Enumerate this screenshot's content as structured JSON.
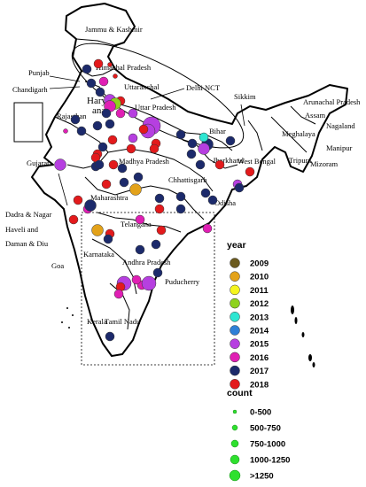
{
  "map": {
    "labels": {
      "jk": "Jammu & Kashmir",
      "hp": "Himachal Pradesh",
      "punjab": "Punjab",
      "chandigarh": "Chandigarh",
      "uttaranchal": "Uttaranchal",
      "delhi": "Delhi NCT",
      "haryana_a": "Hary",
      "haryana_b": "ana",
      "rajasthan": "Rajasthan",
      "up": "Uttar Pradesh",
      "sikkim": "Sikkim",
      "arunachal": "Arunachal Pradesh",
      "assam": "Assam",
      "nagaland": "Nagaland",
      "meghalaya": "Meghalaya",
      "manipur": "Manipur",
      "tripura": "Tripura",
      "mizoram": "Mizoram",
      "bihar": "Bihar",
      "jharkhand": "Jharkhand",
      "wb": "West Bengal",
      "gujarat": "Gujarat",
      "mp": "Madhya Pradesh",
      "chhattisgarh": "Chhattisgarh",
      "odisha": "Odisha",
      "maharashtra": "Maharashtra",
      "dnh1": "Dadra & Nagar",
      "dnh2": "Haveli and",
      "dnh3": "Daman & Diu",
      "telangana": "Telangana",
      "goa": "Goa",
      "karnataka": "Karnataka",
      "ap": "Andhra Pradesh",
      "puducherry": "Puducherry",
      "kerala": "Kerala",
      "tn": "Tamil Nadu"
    }
  },
  "legend": {
    "year_title": "year",
    "years": [
      {
        "label": "2009",
        "color": "#6b5a1e"
      },
      {
        "label": "2010",
        "color": "#e3a21a"
      },
      {
        "label": "2011",
        "color": "#f5f51e"
      },
      {
        "label": "2012",
        "color": "#8ed21e"
      },
      {
        "label": "2013",
        "color": "#2ee6d2"
      },
      {
        "label": "2014",
        "color": "#2f7fd6"
      },
      {
        "label": "2015",
        "color": "#b63fe0"
      },
      {
        "label": "2016",
        "color": "#e01fb4"
      },
      {
        "label": "2017",
        "color": "#1c2a6b"
      },
      {
        "label": "2018",
        "color": "#e31a1c"
      }
    ],
    "count_title": "count",
    "counts": [
      {
        "label": "0-500",
        "color": "#2ee02e"
      },
      {
        "label": "500-750",
        "color": "#2ee02e"
      },
      {
        "label": "750-1000",
        "color": "#2ee02e"
      },
      {
        "label": "1000-1250",
        "color": "#2ee02e"
      },
      {
        "label": ">1250",
        "color": "#2ee02e"
      }
    ]
  },
  "points": [
    {
      "year": "2017",
      "count": "500-750"
    },
    {
      "year": "2018",
      "count": "500-750"
    },
    {
      "year": "2018",
      "count": "0-500"
    },
    {
      "year": "2017",
      "count": "500-750"
    },
    {
      "year": "2016",
      "count": "500-750"
    },
    {
      "year": "2018",
      "count": "0-500"
    },
    {
      "year": "2017",
      "count": "500-750"
    },
    {
      "year": "2015",
      "count": "750-1000"
    },
    {
      "year": "2018",
      "count": "500-750"
    },
    {
      "year": "2012",
      "count": "750-1000"
    },
    {
      "year": "2016",
      "count": "750-1000"
    },
    {
      "year": "2017",
      "count": "500-750"
    },
    {
      "year": "2016",
      "count": "500-750"
    },
    {
      "year": "2015",
      "count": "500-750"
    },
    {
      "year": "2015",
      "count": ">1250"
    },
    {
      "year": "2015",
      "count": "1000-1250"
    },
    {
      "year": "2017",
      "count": "500-750"
    },
    {
      "year": "2016",
      "count": "0-500"
    },
    {
      "year": "2017",
      "count": "500-750"
    },
    {
      "year": "2017",
      "count": "500-750"
    },
    {
      "year": "2017",
      "count": "500-750"
    },
    {
      "year": "2018",
      "count": "500-750"
    },
    {
      "year": "2015",
      "count": "500-750"
    },
    {
      "year": "2018",
      "count": "500-750"
    },
    {
      "year": "2018",
      "count": "500-750"
    },
    {
      "year": "2017",
      "count": "500-750"
    },
    {
      "year": "2017",
      "count": "500-750"
    },
    {
      "year": "2018",
      "count": "500-750"
    },
    {
      "year": "2017",
      "count": "500-750"
    },
    {
      "year": "2018",
      "count": "500-750"
    },
    {
      "year": "2018",
      "count": "500-750"
    },
    {
      "year": "2018",
      "count": "500-750"
    },
    {
      "year": "2015",
      "count": "750-1000"
    },
    {
      "year": "2017",
      "count": "500-750"
    },
    {
      "year": "2017",
      "count": "500-750"
    },
    {
      "year": "2017",
      "count": "500-750"
    },
    {
      "year": "2018",
      "count": "500-750"
    },
    {
      "year": "2017",
      "count": "500-750"
    },
    {
      "year": "2017",
      "count": "750-1000"
    },
    {
      "year": "2013",
      "count": "500-750"
    },
    {
      "year": "2015",
      "count": "750-1000"
    },
    {
      "year": "2017",
      "count": "500-750"
    },
    {
      "year": "2017",
      "count": "500-750"
    },
    {
      "year": "2018",
      "count": "500-750"
    },
    {
      "year": "2018",
      "count": "500-750"
    },
    {
      "year": "2015",
      "count": "500-750"
    },
    {
      "year": "2017",
      "count": "500-750"
    },
    {
      "year": "2017",
      "count": "500-750"
    },
    {
      "year": "2018",
      "count": "500-750"
    },
    {
      "year": "2017",
      "count": "500-750"
    },
    {
      "year": "2017",
      "count": "500-750"
    },
    {
      "year": "2018",
      "count": "500-750"
    },
    {
      "year": "2017",
      "count": "500-750"
    },
    {
      "year": "2017",
      "count": "500-750"
    },
    {
      "year": "2010",
      "count": "750-1000"
    },
    {
      "year": "2016",
      "count": "500-750"
    },
    {
      "year": "2018",
      "count": "500-750"
    },
    {
      "year": "2018",
      "count": "500-750"
    },
    {
      "year": "2017",
      "count": "750-1000"
    },
    {
      "year": "2018",
      "count": "500-750"
    },
    {
      "year": "2016",
      "count": "500-750"
    },
    {
      "year": "2010",
      "count": "750-1000"
    },
    {
      "year": "2018",
      "count": "500-750"
    },
    {
      "year": "2017",
      "count": "500-750"
    },
    {
      "year": "2017",
      "count": "500-750"
    },
    {
      "year": "2016",
      "count": "500-750"
    },
    {
      "year": "2015",
      "count": "1000-1250"
    },
    {
      "year": "2016",
      "count": "500-750"
    },
    {
      "year": "2018",
      "count": "500-750"
    },
    {
      "year": "2015",
      "count": "1000-1250"
    },
    {
      "year": "2016",
      "count": "500-750"
    },
    {
      "year": "2017",
      "count": "500-750"
    },
    {
      "year": "2016",
      "count": "500-750"
    },
    {
      "year": "2017",
      "count": "500-750"
    },
    {
      "year": "2017",
      "count": "500-750"
    },
    {
      "year": "2017",
      "count": "500-750"
    },
    {
      "year": "2017",
      "count": "500-750"
    }
  ]
}
